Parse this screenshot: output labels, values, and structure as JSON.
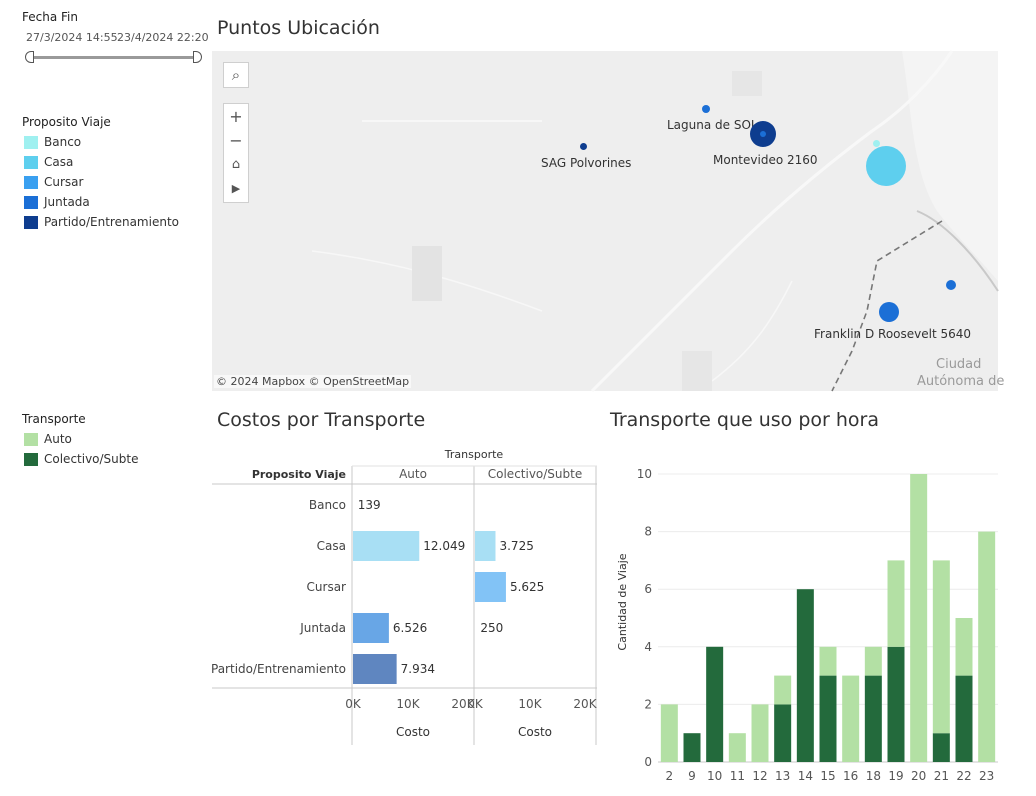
{
  "filter": {
    "title": "Fecha Fin",
    "start": "27/3/2024 14:55",
    "end": "23/4/2024 22:20"
  },
  "legend_proposito": {
    "title": "Proposito Viaje",
    "items": [
      {
        "label": "Banco",
        "color": "#9ff0f0"
      },
      {
        "label": "Casa",
        "color": "#5ecfee"
      },
      {
        "label": "Cursar",
        "color": "#3aa0f0"
      },
      {
        "label": "Juntada",
        "color": "#1b6fd6"
      },
      {
        "label": "Partido/Entrenamiento",
        "color": "#0e3d8f"
      }
    ]
  },
  "legend_transporte": {
    "title": "Transporte",
    "items": [
      {
        "label": "Auto",
        "color": "#b3e0a4"
      },
      {
        "label": "Colectivo/Subte",
        "color": "#236a3c"
      }
    ]
  },
  "map": {
    "title": "Puntos Ubicación",
    "attribution": "© 2024 Mapbox  © OpenStreetMap",
    "corner_label_1": "Ciudad",
    "corner_label_2": "Autónoma de",
    "labels": {
      "laguna": "Laguna de SOI",
      "sag": "SAG Polvorines",
      "montevideo": "Montevideo 2160",
      "franklin": "Franklin D Roosevelt 5640"
    }
  },
  "costos": {
    "title": "Costos por Transporte",
    "col_group": "Transporte",
    "row_header": "Proposito Viaje",
    "col_auto": "Auto",
    "col_colectivo": "Colectivo/Subte",
    "axis_title": "Costo",
    "ticks": [
      "0K",
      "10K",
      "20K"
    ],
    "rows": [
      "Banco",
      "Casa",
      "Cursar",
      "Juntada",
      "Partido/Entrenamiento"
    ],
    "auto_values": [
      139,
      12049,
      null,
      6526,
      7934
    ],
    "auto_labels": [
      "139",
      "12.049",
      "",
      "6.526",
      "7.934"
    ],
    "colectivo_values": [
      null,
      3725,
      5625,
      250,
      null
    ],
    "colectivo_labels": [
      "",
      "3.725",
      "5.625",
      "250",
      ""
    ],
    "auto_colors": [
      "#9ff0f0",
      "#a8dff4",
      "#3aa0f0",
      "#68a6e6",
      "#5f86c0"
    ],
    "colectivo_colors": [
      "#9ff0f0",
      "#a8dff4",
      "#82c3f6",
      "#68a6e6",
      "#5f86c0"
    ]
  },
  "chart_data": {
    "type": "bar",
    "title": "Transporte que uso por hora",
    "ylabel": "Cantidad de Viaje",
    "xlabel": "",
    "stacked": true,
    "categories": [
      "2",
      "9",
      "10",
      "11",
      "12",
      "13",
      "14",
      "15",
      "16",
      "18",
      "19",
      "20",
      "21",
      "22",
      "23"
    ],
    "series": [
      {
        "name": "Colectivo/Subte",
        "color": "#236a3c",
        "values": [
          0,
          1,
          4,
          0,
          0,
          2,
          6,
          3,
          0,
          3,
          4,
          0,
          1,
          3,
          0
        ]
      },
      {
        "name": "Auto",
        "color": "#b3e0a4",
        "values": [
          2,
          0,
          0,
          1,
          2,
          1,
          0,
          1,
          3,
          1,
          3,
          10,
          6,
          2,
          8
        ]
      }
    ],
    "ylim": [
      0,
      10
    ],
    "yticks": [
      "0",
      "2",
      "4",
      "6",
      "8",
      "10"
    ],
    "grid": true
  }
}
